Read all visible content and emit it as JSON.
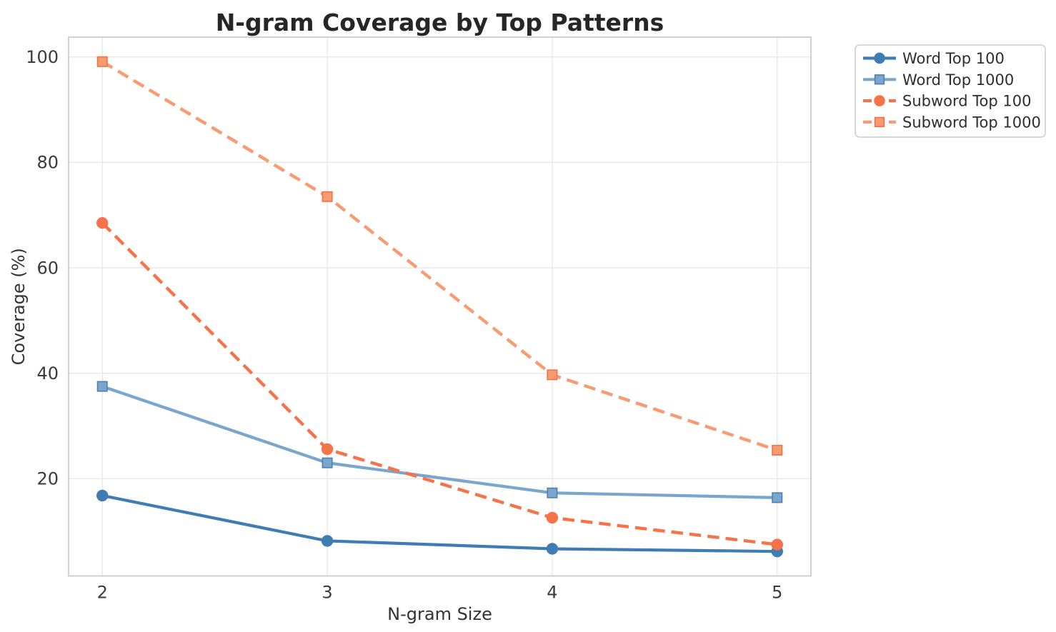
{
  "chart_data": {
    "type": "line",
    "title": "N-gram Coverage by Top Patterns",
    "xlabel": "N-gram Size",
    "ylabel": "Coverage (%)",
    "x": [
      2,
      3,
      4,
      5
    ],
    "xticks": [
      2,
      3,
      4,
      5
    ],
    "yticks": [
      20,
      40,
      60,
      80,
      100
    ],
    "xlim": [
      1.85,
      5.15
    ],
    "ylim": [
      1.55,
      103.75
    ],
    "grid": true,
    "legend_position": "outside-top-right",
    "series": [
      {
        "name": "Word Top 100",
        "values": [
          16.8,
          8.2,
          6.7,
          6.2
        ],
        "color": "#3e7cb3",
        "edge": "#3e7cb3",
        "marker": "circle",
        "line": "solid"
      },
      {
        "name": "Word Top 1000",
        "values": [
          37.5,
          23.0,
          17.3,
          16.4
        ],
        "color": "#7aa6cd",
        "edge": "#4e7fae",
        "marker": "square",
        "line": "solid"
      },
      {
        "name": "Subword Top 100",
        "values": [
          68.5,
          25.6,
          12.6,
          7.5
        ],
        "color": "#f67349",
        "edge": "#f67349",
        "marker": "circle",
        "line": "dashed"
      },
      {
        "name": "Subword Top 1000",
        "values": [
          99.1,
          73.5,
          39.7,
          25.4
        ],
        "color": "#f99b72",
        "edge": "#f2713f",
        "marker": "square",
        "line": "dashed"
      }
    ],
    "colors": {
      "title_text": "#262626",
      "tick_text": "#3b3b3b",
      "label_text": "#333333",
      "grid": "#e9e9e9",
      "spine": "#cccccc",
      "background": "#ffffff",
      "legend_border": "#cccccc"
    }
  }
}
